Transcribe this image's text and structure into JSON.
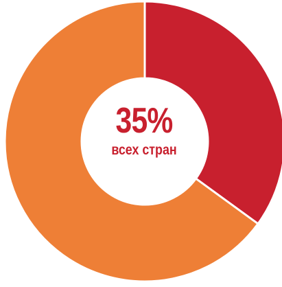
{
  "chart_data": {
    "type": "pie",
    "title": "",
    "slices": [
      {
        "value": 35,
        "color": "#c8202e"
      },
      {
        "value": 65,
        "color": "#ee7f36"
      }
    ],
    "center_value": "35%",
    "center_caption": "всех стран",
    "center_text_color": "#c8202e"
  }
}
